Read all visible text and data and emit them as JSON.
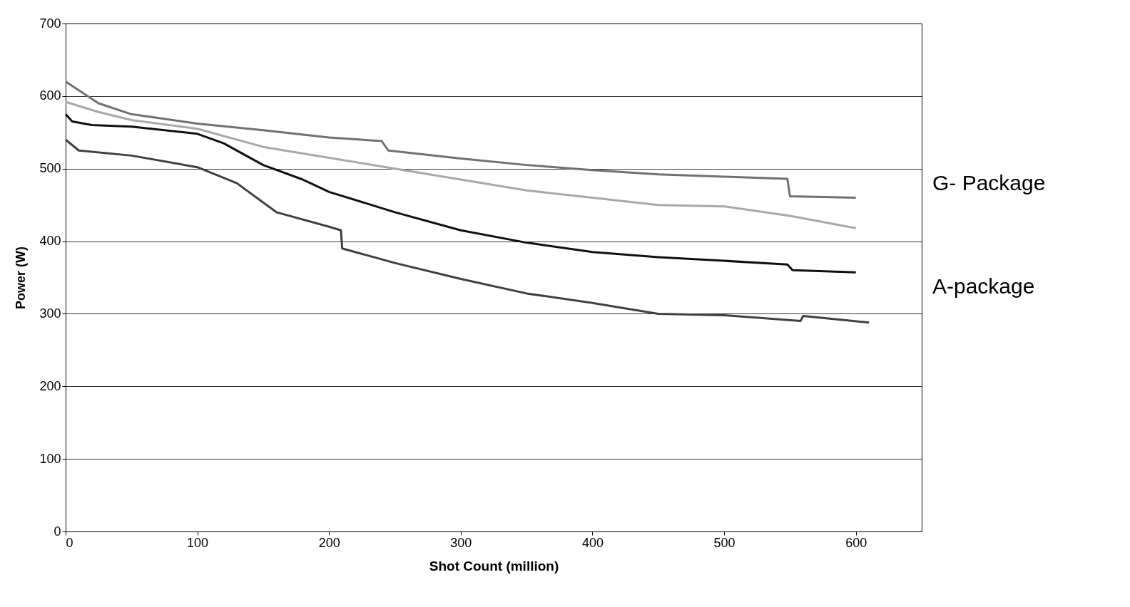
{
  "chart_data": {
    "type": "line",
    "xlabel": "Shot Count (million)",
    "ylabel": "Power (W)",
    "xlim": [
      0,
      650
    ],
    "xticks": [
      0,
      100,
      200,
      300,
      400,
      500,
      600
    ],
    "ylim": [
      0,
      700
    ],
    "yticks": [
      0,
      100,
      200,
      300,
      400,
      500,
      600,
      700
    ],
    "grid": "y",
    "legend": false,
    "marker": "none",
    "line_style": "solid",
    "series": [
      {
        "color": "#707070",
        "x": [
          0,
          25,
          50,
          100,
          150,
          200,
          240,
          245,
          300,
          350,
          400,
          450,
          500,
          548,
          550,
          600
        ],
        "values": [
          620,
          590,
          575,
          562,
          553,
          543,
          538,
          525,
          514,
          505,
          498,
          492,
          489,
          486,
          462,
          460
        ]
      },
      {
        "color": "#a8a8a8",
        "x": [
          0,
          25,
          50,
          100,
          150,
          200,
          250,
          300,
          350,
          400,
          450,
          500,
          550,
          600
        ],
        "values": [
          592,
          578,
          567,
          555,
          530,
          515,
          500,
          485,
          470,
          460,
          450,
          448,
          435,
          418
        ]
      },
      {
        "color": "#101010",
        "x": [
          0,
          5,
          20,
          50,
          100,
          120,
          150,
          180,
          200,
          250,
          300,
          350,
          400,
          450,
          500,
          548,
          552,
          600
        ],
        "values": [
          575,
          565,
          560,
          558,
          548,
          535,
          505,
          485,
          468,
          440,
          415,
          398,
          385,
          378,
          373,
          368,
          360,
          357
        ]
      },
      {
        "color": "#404040",
        "x": [
          0,
          10,
          50,
          100,
          130,
          160,
          200,
          209,
          210,
          250,
          300,
          350,
          400,
          450,
          500,
          558,
          560,
          610
        ],
        "values": [
          540,
          525,
          518,
          502,
          480,
          440,
          420,
          415,
          390,
          370,
          348,
          328,
          315,
          300,
          298,
          290,
          297,
          288
        ]
      }
    ],
    "annotations": [
      "G- Package",
      "A-package"
    ]
  }
}
